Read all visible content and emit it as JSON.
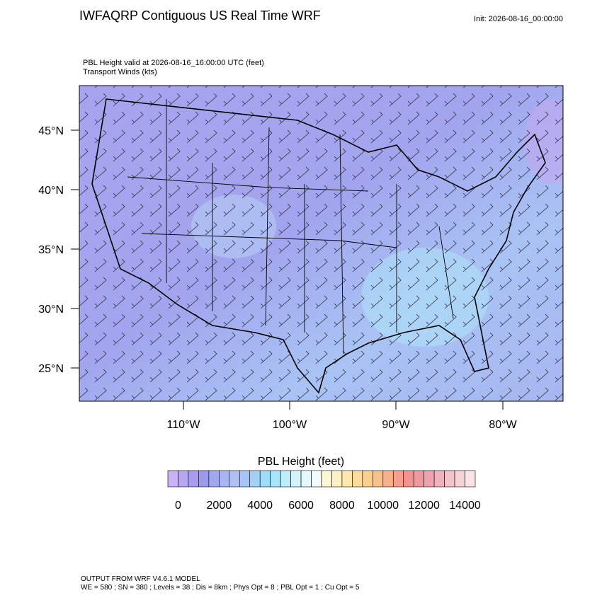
{
  "header": {
    "title": "IWFAQRP Contiguous US Real Time WRF",
    "init": "Init: 2026-08-16_00:00:00"
  },
  "plot": {
    "subtitle_lines": [
      "PBL Height valid at 2026-08-16_16:00:00 UTC   (feet)",
      "Transport Winds   (kts)"
    ],
    "lat_labels": [
      "45°N",
      "40°N",
      "35°N",
      "30°N",
      "25°N"
    ],
    "lon_labels": [
      "110°W",
      "100°W",
      "90°W",
      "80°W"
    ]
  },
  "colorbar": {
    "title": "PBL Height  (feet)",
    "labels": [
      0,
      2000,
      4000,
      6000,
      8000,
      10000,
      12000,
      14000
    ],
    "colors": [
      "#c9b2f2",
      "#b9a6f0",
      "#a79cef",
      "#9b98ee",
      "#a2a8f0",
      "#a9b4f1",
      "#b0bef2",
      "#a8c4f5",
      "#a4d0f7",
      "#9edcfa",
      "#a8e6fb",
      "#bdeefc",
      "#d2f3fc",
      "#e3f7fc",
      "#f2fbfd",
      "#fdf7d8",
      "#fdf0c2",
      "#fde7ad",
      "#fcdc9c",
      "#fbcf8f",
      "#f9c18a",
      "#f8b08a",
      "#f69f8c",
      "#f49293",
      "#ee999f",
      "#eca3ad",
      "#f0b3bd",
      "#f3c3cb",
      "#f6d3d8",
      "#fae4e6"
    ]
  },
  "footer": {
    "lines": [
      "OUTPUT FROM WRF V4.6.1 MODEL",
      "WE = 580 ; SN = 380 ; Levels = 38 ; Dis = 8km ; Phys Opt = 8 ; PBL Opt = 1 ; Cu Opt = 5"
    ]
  }
}
